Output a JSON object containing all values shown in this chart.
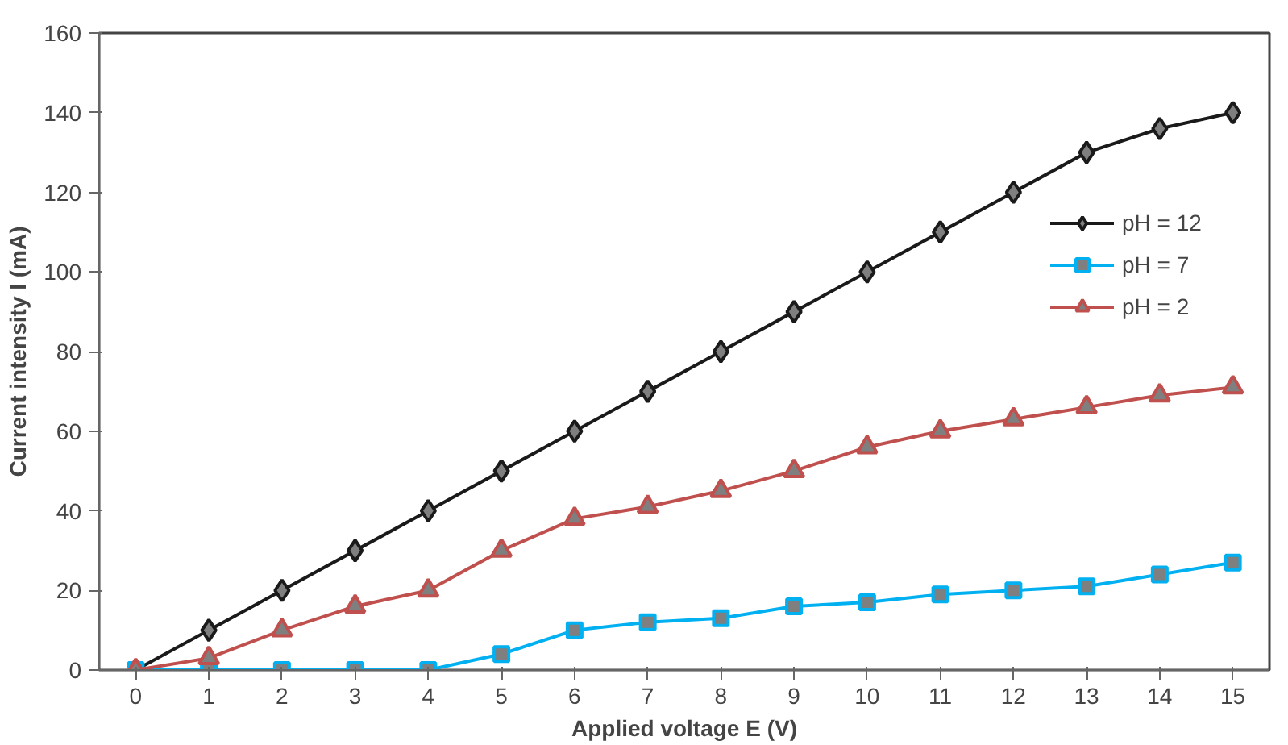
{
  "chart_data": {
    "type": "line",
    "xlabel": "Applied voltage E (V)",
    "ylabel": "Current intensity I (mA)",
    "x": [
      0,
      1,
      2,
      3,
      4,
      5,
      6,
      7,
      8,
      9,
      10,
      11,
      12,
      13,
      14,
      15
    ],
    "xlim": [
      -0.5,
      15.5
    ],
    "xticks": [
      0,
      1,
      2,
      3,
      4,
      5,
      6,
      7,
      8,
      9,
      10,
      11,
      12,
      13,
      14,
      15
    ],
    "ylim": [
      0,
      160
    ],
    "yticks": [
      0,
      20,
      40,
      60,
      80,
      100,
      120,
      140,
      160
    ],
    "grid": false,
    "legend": "right",
    "line_style": "solid",
    "series": [
      {
        "name": "pH = 12",
        "color": "#1a1a1a",
        "marker": "diamond",
        "values": [
          0,
          10,
          20,
          30,
          40,
          50,
          60,
          70,
          80,
          90,
          100,
          110,
          120,
          130,
          136,
          140
        ]
      },
      {
        "name": "pH = 7",
        "color": "#00b0f0",
        "marker": "square",
        "values": [
          0,
          0,
          0,
          0,
          0,
          4,
          10,
          12,
          13,
          16,
          17,
          19,
          20,
          21,
          24,
          27
        ]
      },
      {
        "name": "pH = 2",
        "color": "#c0504d",
        "marker": "triangle",
        "values": [
          0,
          3,
          10,
          16,
          20,
          30,
          38,
          41,
          45,
          50,
          56,
          60,
          63,
          66,
          69,
          71
        ]
      }
    ]
  }
}
